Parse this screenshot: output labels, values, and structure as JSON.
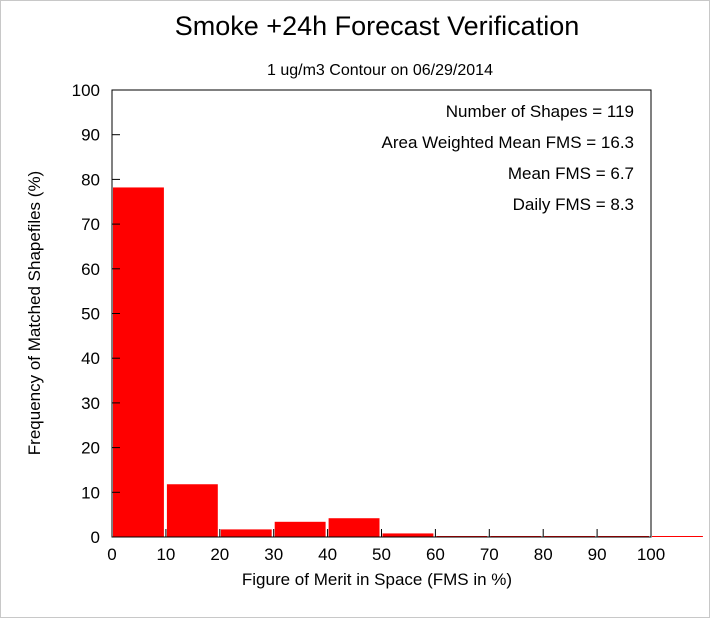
{
  "chart_data": {
    "type": "bar",
    "title": "Smoke +24h Forecast Verification",
    "subtitle": "1 ug/m3 Contour on 06/29/2014",
    "xlabel": "Figure of Merit in Space (FMS in %)",
    "ylabel": "Frequency of Matched Shapefiles (%)",
    "xlim": [
      0,
      100
    ],
    "ylim": [
      0,
      100
    ],
    "xticks": [
      0,
      10,
      20,
      30,
      40,
      50,
      60,
      70,
      80,
      90,
      100
    ],
    "yticks": [
      0,
      10,
      20,
      30,
      40,
      50,
      60,
      70,
      80,
      90,
      100
    ],
    "bin_width": 10,
    "bins": [
      0,
      10,
      20,
      30,
      40,
      50,
      60,
      70,
      80,
      90,
      100
    ],
    "values": [
      78.2,
      11.8,
      1.7,
      3.4,
      4.2,
      0.8,
      0,
      0,
      0,
      0,
      0
    ],
    "bar_color": "#ff0000",
    "annotations": [
      "Number of Shapes = 119",
      "Area Weighted Mean FMS = 16.3",
      "Mean FMS = 6.7",
      "Daily FMS = 8.3"
    ],
    "grid": false,
    "legend": "none"
  }
}
